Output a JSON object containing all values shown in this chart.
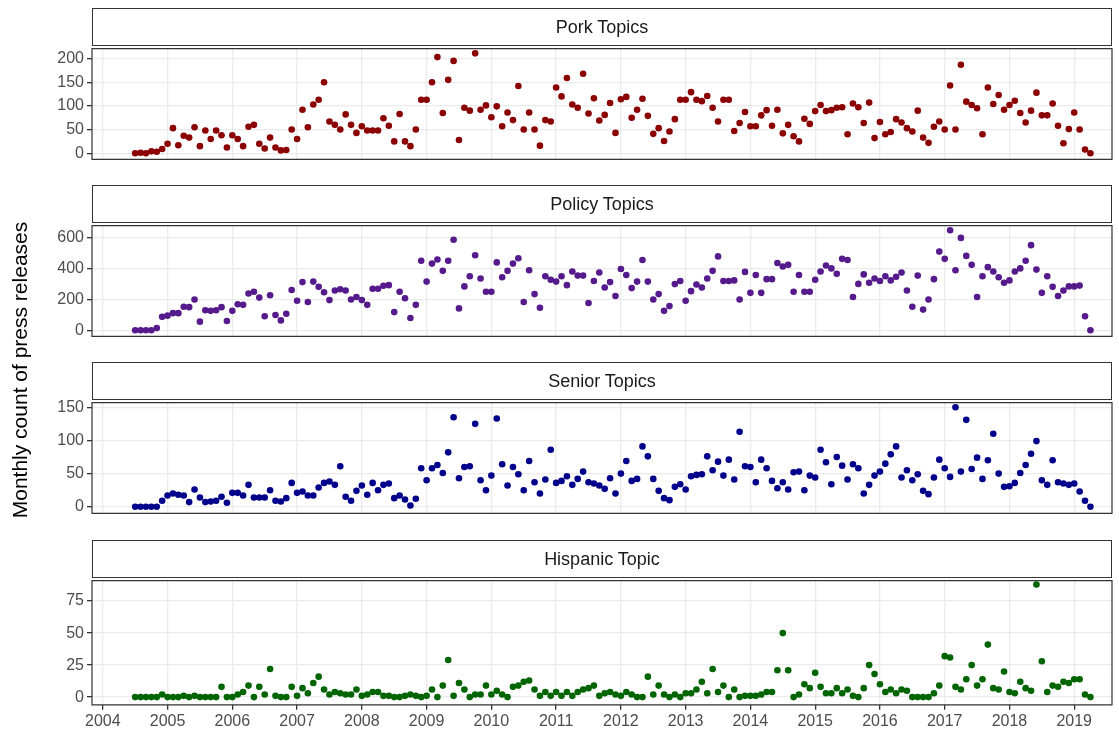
{
  "chart_data": [
    {
      "type": "scatter",
      "title": "Pork Topics",
      "ylabel": "Monthly count of press releases",
      "marker": "circle",
      "grid": true,
      "legend": false,
      "tick_labels": "y",
      "color": "#8b0000",
      "x": [
        "2004-07",
        "2004-08",
        "2004-09",
        "2004-10",
        "2004-11",
        "2004-12",
        "2005-01",
        "2005-02",
        "2005-03",
        "2005-04",
        "2005-05",
        "2005-06",
        "2005-07",
        "2005-08",
        "2005-09",
        "2005-10",
        "2005-11",
        "2005-12",
        "2006-01",
        "2006-02",
        "2006-03",
        "2006-04",
        "2006-05",
        "2006-06",
        "2006-07",
        "2006-08",
        "2006-09",
        "2006-10",
        "2006-11",
        "2006-12",
        "2007-01",
        "2007-02",
        "2007-03",
        "2007-04",
        "2007-05",
        "2007-06",
        "2007-07",
        "2007-08",
        "2007-09",
        "2007-10",
        "2007-11",
        "2007-12",
        "2008-01",
        "2008-02",
        "2008-03",
        "2008-04",
        "2008-05",
        "2008-06",
        "2008-07",
        "2008-08",
        "2008-09",
        "2008-10",
        "2008-11",
        "2008-12",
        "2009-01",
        "2009-02",
        "2009-03",
        "2009-04",
        "2009-05",
        "2009-06",
        "2009-07",
        "2009-08",
        "2009-09",
        "2009-10",
        "2009-11",
        "2009-12",
        "2010-01",
        "2010-02",
        "2010-03",
        "2010-04",
        "2010-05",
        "2010-06",
        "2010-07",
        "2010-08",
        "2010-09",
        "2010-10",
        "2010-11",
        "2010-12",
        "2011-01",
        "2011-02",
        "2011-03",
        "2011-04",
        "2011-05",
        "2011-06",
        "2011-07",
        "2011-08",
        "2011-09",
        "2011-10",
        "2011-11",
        "2011-12",
        "2012-01",
        "2012-02",
        "2012-03",
        "2012-04",
        "2012-05",
        "2012-06",
        "2012-07",
        "2012-08",
        "2012-09",
        "2012-10",
        "2012-11",
        "2012-12",
        "2013-01",
        "2013-02",
        "2013-03",
        "2013-04",
        "2013-05",
        "2013-06",
        "2013-07",
        "2013-08",
        "2013-09",
        "2013-10",
        "2013-11",
        "2013-12",
        "2014-01",
        "2014-02",
        "2014-03",
        "2014-04",
        "2014-05",
        "2014-06",
        "2014-07",
        "2014-08",
        "2014-09",
        "2014-10",
        "2014-11",
        "2014-12",
        "2015-01",
        "2015-02",
        "2015-03",
        "2015-04",
        "2015-05",
        "2015-06",
        "2015-07",
        "2015-08",
        "2015-09",
        "2015-10",
        "2015-11",
        "2015-12",
        "2016-01",
        "2016-02",
        "2016-03",
        "2016-04",
        "2016-05",
        "2016-06",
        "2016-07",
        "2016-08",
        "2016-09",
        "2016-10",
        "2016-11",
        "2016-12",
        "2017-01",
        "2017-02",
        "2017-03",
        "2017-04",
        "2017-05",
        "2017-06",
        "2017-07",
        "2017-08",
        "2017-09",
        "2017-10",
        "2017-11",
        "2017-12",
        "2018-01",
        "2018-02",
        "2018-03",
        "2018-04",
        "2018-05",
        "2018-06",
        "2018-07",
        "2018-08",
        "2018-09",
        "2018-10",
        "2018-11",
        "2018-12",
        "2019-01",
        "2019-02",
        "2019-03",
        "2019-04"
      ],
      "values": [
        0,
        1,
        0,
        4,
        3,
        9,
        20,
        53,
        17,
        37,
        33,
        55,
        15,
        48,
        30,
        48,
        38,
        12,
        38,
        30,
        15,
        56,
        60,
        20,
        10,
        33,
        12,
        6,
        7,
        50,
        30,
        92,
        55,
        103,
        113,
        150,
        67,
        60,
        50,
        82,
        60,
        43,
        57,
        48,
        48,
        48,
        74,
        58,
        25,
        83,
        25,
        15,
        50,
        113,
        113,
        150,
        203,
        85,
        155,
        195,
        28,
        96,
        90,
        211,
        92,
        101,
        76,
        99,
        57,
        86,
        70,
        142,
        50,
        86,
        50,
        16,
        70,
        67,
        139,
        120,
        159,
        103,
        96,
        168,
        84,
        116,
        69,
        81,
        106,
        43,
        114,
        119,
        75,
        92,
        115,
        79,
        41,
        53,
        26,
        46,
        72,
        113,
        113,
        129,
        113,
        110,
        121,
        96,
        67,
        113,
        113,
        47,
        64,
        87,
        57,
        57,
        80,
        91,
        58,
        92,
        42,
        60,
        36,
        25,
        73,
        62,
        89,
        102,
        89,
        91,
        96,
        97,
        40,
        105,
        97,
        64,
        107,
        32,
        66,
        40,
        45,
        72,
        65,
        53,
        46,
        90,
        33,
        22,
        56,
        67,
        50,
        143,
        50,
        187,
        109,
        102,
        95,
        40,
        139,
        104,
        123,
        92,
        102,
        111,
        85,
        65,
        90,
        128,
        80,
        80,
        105,
        58,
        21,
        51,
        86,
        50,
        8,
        0
      ],
      "xlim": [
        "2003-11",
        "2019-08"
      ],
      "ylim": [
        -13,
        221
      ],
      "yticks": [
        0,
        50,
        100,
        150,
        200
      ],
      "xticks": [
        "2004",
        "2005",
        "2006",
        "2007",
        "2008",
        "2009",
        "2010",
        "2011",
        "2012",
        "2013",
        "2014",
        "2015",
        "2016",
        "2017",
        "2018",
        "2019"
      ]
    },
    {
      "type": "scatter",
      "title": "Policy Topics",
      "marker": "circle",
      "grid": true,
      "legend": false,
      "tick_labels": "y",
      "color": "#551a8b",
      "x": [
        "2004-07",
        "2004-08",
        "2004-09",
        "2004-10",
        "2004-11",
        "2004-12",
        "2005-01",
        "2005-02",
        "2005-03",
        "2005-04",
        "2005-05",
        "2005-06",
        "2005-07",
        "2005-08",
        "2005-09",
        "2005-10",
        "2005-11",
        "2005-12",
        "2006-01",
        "2006-02",
        "2006-03",
        "2006-04",
        "2006-05",
        "2006-06",
        "2006-07",
        "2006-08",
        "2006-09",
        "2006-10",
        "2006-11",
        "2006-12",
        "2007-01",
        "2007-02",
        "2007-03",
        "2007-04",
        "2007-05",
        "2007-06",
        "2007-07",
        "2007-08",
        "2007-09",
        "2007-10",
        "2007-11",
        "2007-12",
        "2008-01",
        "2008-02",
        "2008-03",
        "2008-04",
        "2008-05",
        "2008-06",
        "2008-07",
        "2008-08",
        "2008-09",
        "2008-10",
        "2008-11",
        "2008-12",
        "2009-01",
        "2009-02",
        "2009-03",
        "2009-04",
        "2009-05",
        "2009-06",
        "2009-07",
        "2009-08",
        "2009-09",
        "2009-10",
        "2009-11",
        "2009-12",
        "2010-01",
        "2010-02",
        "2010-03",
        "2010-04",
        "2010-05",
        "2010-06",
        "2010-07",
        "2010-08",
        "2010-09",
        "2010-10",
        "2010-11",
        "2010-12",
        "2011-01",
        "2011-02",
        "2011-03",
        "2011-04",
        "2011-05",
        "2011-06",
        "2011-07",
        "2011-08",
        "2011-09",
        "2011-10",
        "2011-11",
        "2011-12",
        "2012-01",
        "2012-02",
        "2012-03",
        "2012-04",
        "2012-05",
        "2012-06",
        "2012-07",
        "2012-08",
        "2012-09",
        "2012-10",
        "2012-11",
        "2012-12",
        "2013-01",
        "2013-02",
        "2013-03",
        "2013-04",
        "2013-05",
        "2013-06",
        "2013-07",
        "2013-08",
        "2013-09",
        "2013-10",
        "2013-11",
        "2013-12",
        "2014-01",
        "2014-02",
        "2014-03",
        "2014-04",
        "2014-05",
        "2014-06",
        "2014-07",
        "2014-08",
        "2014-09",
        "2014-10",
        "2014-11",
        "2014-12",
        "2015-01",
        "2015-02",
        "2015-03",
        "2015-04",
        "2015-05",
        "2015-06",
        "2015-07",
        "2015-08",
        "2015-09",
        "2015-10",
        "2015-11",
        "2015-12",
        "2016-01",
        "2016-02",
        "2016-03",
        "2016-04",
        "2016-05",
        "2016-06",
        "2016-07",
        "2016-08",
        "2016-09",
        "2016-10",
        "2016-11",
        "2016-12",
        "2017-01",
        "2017-02",
        "2017-03",
        "2017-04",
        "2017-05",
        "2017-06",
        "2017-07",
        "2017-08",
        "2017-09",
        "2017-10",
        "2017-11",
        "2017-12",
        "2018-01",
        "2018-02",
        "2018-03",
        "2018-04",
        "2018-05",
        "2018-06",
        "2018-07",
        "2018-08",
        "2018-09",
        "2018-10",
        "2018-11",
        "2018-12",
        "2019-01",
        "2019-02",
        "2019-03",
        "2019-04"
      ],
      "values": [
        0,
        0,
        0,
        0,
        14,
        87,
        95,
        111,
        111,
        153,
        150,
        200,
        56,
        130,
        126,
        130,
        150,
        60,
        126,
        169,
        165,
        239,
        250,
        212,
        91,
        227,
        99,
        64,
        107,
        262,
        192,
        313,
        184,
        316,
        282,
        247,
        196,
        258,
        266,
        258,
        200,
        216,
        196,
        165,
        270,
        270,
        289,
        293,
        118,
        250,
        208,
        80,
        165,
        452,
        316,
        433,
        460,
        386,
        452,
        588,
        142,
        285,
        351,
        487,
        336,
        250,
        250,
        441,
        344,
        386,
        433,
        468,
        184,
        390,
        235,
        146,
        351,
        328,
        316,
        351,
        293,
        382,
        355,
        355,
        177,
        320,
        375,
        278,
        313,
        223,
        398,
        359,
        274,
        316,
        456,
        316,
        200,
        235,
        126,
        157,
        300,
        320,
        192,
        254,
        297,
        278,
        336,
        386,
        480,
        320,
        320,
        324,
        200,
        379,
        243,
        359,
        243,
        332,
        332,
        437,
        414,
        425,
        250,
        359,
        250,
        250,
        328,
        382,
        421,
        402,
        367,
        464,
        456,
        216,
        301,
        363,
        309,
        336,
        320,
        351,
        324,
        347,
        375,
        258,
        153,
        355,
        134,
        200,
        332,
        511,
        464,
        650,
        390,
        600,
        483,
        425,
        216,
        351,
        410,
        382,
        344,
        309,
        324,
        382,
        402,
        452,
        553,
        394,
        243,
        351,
        282,
        223,
        258,
        285,
        285,
        290,
        91,
        0
      ],
      "xlim": [
        "2003-11",
        "2019-08"
      ],
      "ylim": [
        -40,
        680
      ],
      "yticks": [
        0,
        200,
        400,
        600
      ],
      "xticks": [
        "2004",
        "2005",
        "2006",
        "2007",
        "2008",
        "2009",
        "2010",
        "2011",
        "2012",
        "2013",
        "2014",
        "2015",
        "2016",
        "2017",
        "2018",
        "2019"
      ]
    },
    {
      "type": "scatter",
      "title": "Senior Topics",
      "marker": "circle",
      "grid": true,
      "legend": false,
      "tick_labels": "y",
      "color": "#00008b",
      "x": [
        "2004-07",
        "2004-08",
        "2004-09",
        "2004-10",
        "2004-11",
        "2004-12",
        "2005-01",
        "2005-02",
        "2005-03",
        "2005-04",
        "2005-05",
        "2005-06",
        "2005-07",
        "2005-08",
        "2005-09",
        "2005-10",
        "2005-11",
        "2005-12",
        "2006-01",
        "2006-02",
        "2006-03",
        "2006-04",
        "2006-05",
        "2006-06",
        "2006-07",
        "2006-08",
        "2006-09",
        "2006-10",
        "2006-11",
        "2006-12",
        "2007-01",
        "2007-02",
        "2007-03",
        "2007-04",
        "2007-05",
        "2007-06",
        "2007-07",
        "2007-08",
        "2007-09",
        "2007-10",
        "2007-11",
        "2007-12",
        "2008-01",
        "2008-02",
        "2008-03",
        "2008-04",
        "2008-05",
        "2008-06",
        "2008-07",
        "2008-08",
        "2008-09",
        "2008-10",
        "2008-11",
        "2008-12",
        "2009-01",
        "2009-02",
        "2009-03",
        "2009-04",
        "2009-05",
        "2009-06",
        "2009-07",
        "2009-08",
        "2009-09",
        "2009-10",
        "2009-11",
        "2009-12",
        "2010-01",
        "2010-02",
        "2010-03",
        "2010-04",
        "2010-05",
        "2010-06",
        "2010-07",
        "2010-08",
        "2010-09",
        "2010-10",
        "2010-11",
        "2010-12",
        "2011-01",
        "2011-02",
        "2011-03",
        "2011-04",
        "2011-05",
        "2011-06",
        "2011-07",
        "2011-08",
        "2011-09",
        "2011-10",
        "2011-11",
        "2011-12",
        "2012-01",
        "2012-02",
        "2012-03",
        "2012-04",
        "2012-05",
        "2012-06",
        "2012-07",
        "2012-08",
        "2012-09",
        "2012-10",
        "2012-11",
        "2012-12",
        "2013-01",
        "2013-02",
        "2013-03",
        "2013-04",
        "2013-05",
        "2013-06",
        "2013-07",
        "2013-08",
        "2013-09",
        "2013-10",
        "2013-11",
        "2013-12",
        "2014-01",
        "2014-02",
        "2014-03",
        "2014-04",
        "2014-05",
        "2014-06",
        "2014-07",
        "2014-08",
        "2014-09",
        "2014-10",
        "2014-11",
        "2014-12",
        "2015-01",
        "2015-02",
        "2015-03",
        "2015-04",
        "2015-05",
        "2015-06",
        "2015-07",
        "2015-08",
        "2015-09",
        "2015-10",
        "2015-11",
        "2015-12",
        "2016-01",
        "2016-02",
        "2016-03",
        "2016-04",
        "2016-05",
        "2016-06",
        "2016-07",
        "2016-08",
        "2016-09",
        "2016-10",
        "2016-11",
        "2016-12",
        "2017-01",
        "2017-02",
        "2017-03",
        "2017-04",
        "2017-05",
        "2017-06",
        "2017-07",
        "2017-08",
        "2017-09",
        "2017-10",
        "2017-11",
        "2017-12",
        "2018-01",
        "2018-02",
        "2018-03",
        "2018-04",
        "2018-05",
        "2018-06",
        "2018-07",
        "2018-08",
        "2018-09",
        "2018-10",
        "2018-11",
        "2018-12",
        "2019-01",
        "2019-02",
        "2019-03",
        "2019-04"
      ],
      "values": [
        0,
        0,
        0,
        0,
        0,
        9,
        17,
        20,
        18,
        17,
        7,
        26,
        14,
        7,
        8,
        9,
        15,
        6,
        21,
        21,
        17,
        33,
        14,
        14,
        14,
        25,
        9,
        8,
        13,
        36,
        21,
        23,
        17,
        17,
        29,
        36,
        38,
        33,
        61,
        15,
        9,
        24,
        32,
        18,
        36,
        25,
        33,
        35,
        13,
        17,
        11,
        2,
        12,
        58,
        40,
        58,
        63,
        51,
        82,
        135,
        43,
        60,
        61,
        125,
        40,
        25,
        47,
        133,
        64,
        32,
        60,
        49,
        25,
        69,
        37,
        20,
        41,
        86,
        36,
        39,
        46,
        33,
        42,
        53,
        37,
        35,
        32,
        27,
        43,
        20,
        50,
        69,
        39,
        42,
        91,
        76,
        42,
        24,
        13,
        10,
        30,
        34,
        26,
        46,
        48,
        49,
        76,
        55,
        68,
        47,
        71,
        41,
        113,
        61,
        60,
        37,
        71,
        58,
        39,
        28,
        37,
        26,
        52,
        53,
        25,
        47,
        44,
        86,
        67,
        34,
        75,
        62,
        41,
        64,
        58,
        20,
        33,
        47,
        53,
        65,
        79,
        91,
        44,
        55,
        40,
        49,
        24,
        19,
        44,
        71,
        58,
        45,
        150,
        53,
        131,
        57,
        74,
        42,
        70,
        110,
        50,
        30,
        31,
        36,
        51,
        63,
        80,
        99,
        40,
        33,
        70,
        37,
        35,
        33,
        35,
        23,
        9,
        0
      ],
      "xlim": [
        "2003-11",
        "2019-08"
      ],
      "ylim": [
        -10,
        157
      ],
      "yticks": [
        0,
        50,
        100,
        150
      ],
      "xticks": [
        "2004",
        "2005",
        "2006",
        "2007",
        "2008",
        "2009",
        "2010",
        "2011",
        "2012",
        "2013",
        "2014",
        "2015",
        "2016",
        "2017",
        "2018",
        "2019"
      ]
    },
    {
      "type": "scatter",
      "title": "Hispanic Topic",
      "marker": "circle",
      "grid": true,
      "legend": false,
      "color": "#006400",
      "x": [
        "2004-07",
        "2004-08",
        "2004-09",
        "2004-10",
        "2004-11",
        "2004-12",
        "2005-01",
        "2005-02",
        "2005-03",
        "2005-04",
        "2005-05",
        "2005-06",
        "2005-07",
        "2005-08",
        "2005-09",
        "2005-10",
        "2005-11",
        "2005-12",
        "2006-01",
        "2006-02",
        "2006-03",
        "2006-04",
        "2006-05",
        "2006-06",
        "2006-07",
        "2006-08",
        "2006-09",
        "2006-10",
        "2006-11",
        "2006-12",
        "2007-01",
        "2007-02",
        "2007-03",
        "2007-04",
        "2007-05",
        "2007-06",
        "2007-07",
        "2007-08",
        "2007-09",
        "2007-10",
        "2007-11",
        "2007-12",
        "2008-01",
        "2008-02",
        "2008-03",
        "2008-04",
        "2008-05",
        "2008-06",
        "2008-07",
        "2008-08",
        "2008-09",
        "2008-10",
        "2008-11",
        "2008-12",
        "2009-01",
        "2009-02",
        "2009-03",
        "2009-04",
        "2009-05",
        "2009-06",
        "2009-07",
        "2009-08",
        "2009-09",
        "2009-10",
        "2009-11",
        "2009-12",
        "2010-01",
        "2010-02",
        "2010-03",
        "2010-04",
        "2010-05",
        "2010-06",
        "2010-07",
        "2010-08",
        "2010-09",
        "2010-10",
        "2010-11",
        "2010-12",
        "2011-01",
        "2011-02",
        "2011-03",
        "2011-04",
        "2011-05",
        "2011-06",
        "2011-07",
        "2011-08",
        "2011-09",
        "2011-10",
        "2011-11",
        "2011-12",
        "2012-01",
        "2012-02",
        "2012-03",
        "2012-04",
        "2012-05",
        "2012-06",
        "2012-07",
        "2012-08",
        "2012-09",
        "2012-10",
        "2012-11",
        "2012-12",
        "2013-01",
        "2013-02",
        "2013-03",
        "2013-04",
        "2013-05",
        "2013-06",
        "2013-07",
        "2013-08",
        "2013-09",
        "2013-10",
        "2013-11",
        "2013-12",
        "2014-01",
        "2014-02",
        "2014-03",
        "2014-04",
        "2014-05",
        "2014-06",
        "2014-07",
        "2014-08",
        "2014-09",
        "2014-10",
        "2014-11",
        "2014-12",
        "2015-01",
        "2015-02",
        "2015-03",
        "2015-04",
        "2015-05",
        "2015-06",
        "2015-07",
        "2015-08",
        "2015-09",
        "2015-10",
        "2015-11",
        "2015-12",
        "2016-01",
        "2016-02",
        "2016-03",
        "2016-04",
        "2016-05",
        "2016-06",
        "2016-07",
        "2016-08",
        "2016-09",
        "2016-10",
        "2016-11",
        "2016-12",
        "2017-01",
        "2017-02",
        "2017-03",
        "2017-04",
        "2017-05",
        "2017-06",
        "2017-07",
        "2017-08",
        "2017-09",
        "2017-10",
        "2017-11",
        "2017-12",
        "2018-01",
        "2018-02",
        "2018-03",
        "2018-04",
        "2018-05",
        "2018-06",
        "2018-07",
        "2018-08",
        "2018-09",
        "2018-10",
        "2018-11",
        "2018-12",
        "2019-01",
        "2019-02",
        "2019-03",
        "2019-04"
      ],
      "values": [
        0,
        0,
        0,
        0,
        0,
        2,
        0,
        0,
        0,
        1,
        0,
        1,
        0,
        0,
        0,
        0,
        8,
        0,
        0,
        2,
        4,
        9,
        0,
        8,
        2,
        22,
        1,
        0,
        0,
        8,
        1,
        7,
        3,
        11,
        16,
        6,
        2,
        4,
        3,
        2,
        2,
        6,
        1,
        2,
        4,
        4,
        1,
        1,
        0,
        0,
        1,
        2,
        1,
        0,
        1,
        6,
        0,
        9,
        29,
        1,
        11,
        6,
        0,
        2,
        2,
        9,
        2,
        5,
        2,
        0,
        8,
        9,
        12,
        13,
        6,
        1,
        4,
        1,
        4,
        1,
        4,
        1,
        4,
        6,
        7,
        9,
        1,
        3,
        4,
        2,
        1,
        4,
        2,
        0,
        0,
        16,
        2,
        9,
        2,
        0,
        2,
        0,
        3,
        3,
        6,
        12,
        3,
        22,
        4,
        9,
        0,
        6,
        0,
        1,
        1,
        1,
        2,
        4,
        4,
        21,
        50,
        21,
        0,
        2,
        10,
        7,
        19,
        8,
        3,
        3,
        7,
        3,
        6,
        1,
        0,
        7,
        25,
        18,
        10,
        4,
        6,
        3,
        6,
        5,
        0,
        0,
        0,
        0,
        3,
        9,
        32,
        31,
        8,
        6,
        14,
        25,
        9,
        14,
        41,
        7,
        6,
        20,
        4,
        3,
        12,
        7,
        5,
        88,
        28,
        4,
        9,
        8,
        12,
        11,
        14,
        14,
        2,
        0
      ],
      "xlim": [
        "2003-11",
        "2019-08"
      ],
      "ylim": [
        -6,
        91
      ],
      "yticks": [
        0,
        25,
        50,
        75
      ],
      "xticks": [
        "2004",
        "2005",
        "2006",
        "2007",
        "2008",
        "2009",
        "2010",
        "2011",
        "2012",
        "2013",
        "2014",
        "2015",
        "2016",
        "2017",
        "2018",
        "2019"
      ]
    }
  ]
}
